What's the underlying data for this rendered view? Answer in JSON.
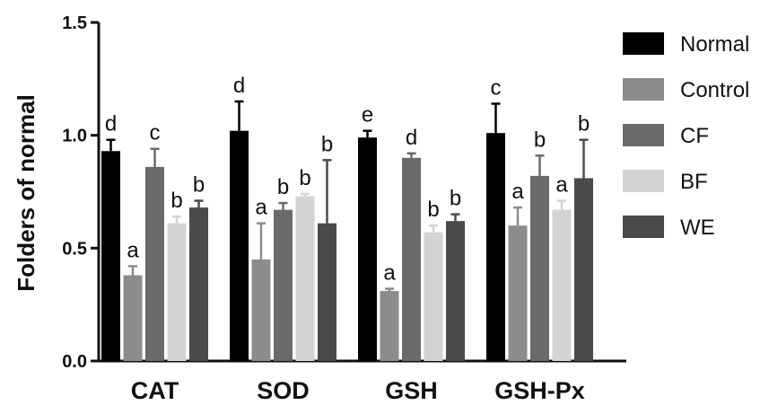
{
  "chart_data": {
    "type": "bar",
    "ylabel": "Folders of normal",
    "xlabel": "",
    "ylim": [
      0,
      1.5
    ],
    "yticks": [
      "0.0",
      "0.5",
      "1.0",
      "1.5"
    ],
    "ytick_values": [
      0,
      0.5,
      1.0,
      1.5
    ],
    "categories": [
      "CAT",
      "SOD",
      "GSH",
      "GSH-Px"
    ],
    "legend_position": "right",
    "series": [
      {
        "name": "Normal",
        "color": "#000000",
        "values": [
          0.93,
          1.02,
          0.99,
          1.01
        ],
        "errors": [
          0.05,
          0.13,
          0.03,
          0.13
        ],
        "labels": [
          "d",
          "d",
          "e",
          "c"
        ]
      },
      {
        "name": "Control",
        "color": "#8c8c8c",
        "values": [
          0.38,
          0.45,
          0.31,
          0.6
        ],
        "errors": [
          0.04,
          0.16,
          0.01,
          0.08
        ],
        "labels": [
          "a",
          "a",
          "a",
          "a"
        ]
      },
      {
        "name": "CF",
        "color": "#6a6a6a",
        "values": [
          0.86,
          0.67,
          0.9,
          0.82
        ],
        "errors": [
          0.08,
          0.03,
          0.02,
          0.09
        ],
        "labels": [
          "c",
          "b",
          "d",
          "b"
        ]
      },
      {
        "name": "BF",
        "color": "#d3d3d3",
        "values": [
          0.61,
          0.73,
          0.57,
          0.67
        ],
        "errors": [
          0.03,
          0.01,
          0.03,
          0.04
        ],
        "labels": [
          "b",
          "b",
          "b",
          "a"
        ]
      },
      {
        "name": "WE",
        "color": "#4a4a4a",
        "values": [
          0.68,
          0.61,
          0.62,
          0.81
        ],
        "errors": [
          0.03,
          0.28,
          0.03,
          0.17
        ],
        "labels": [
          "b",
          "b",
          "b",
          "b"
        ]
      }
    ]
  }
}
